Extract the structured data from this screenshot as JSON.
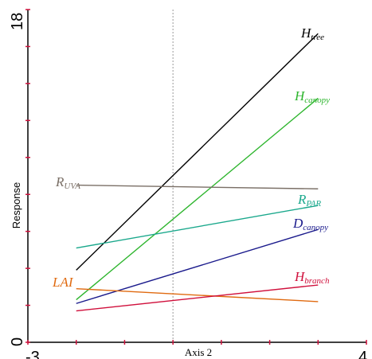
{
  "chart_data": {
    "type": "line",
    "xlabel": "Axis 2",
    "ylabel": "Response",
    "xlim": [
      -3,
      4
    ],
    "ylim": [
      0,
      18
    ],
    "x_tick_labels": [
      "-3",
      "4"
    ],
    "y_tick_labels": [
      "0",
      "18"
    ],
    "reference_line_x": 0,
    "series": [
      {
        "name": "H",
        "subscript": "tree",
        "color": "#000000",
        "x": [
          -2,
          3
        ],
        "y": [
          3.9,
          16.7
        ]
      },
      {
        "name": "H",
        "subscript": "canopy",
        "color": "#2db52d",
        "x": [
          -2,
          3
        ],
        "y": [
          2.3,
          13.2
        ]
      },
      {
        "name": "R",
        "subscript": "UVA",
        "color": "#7a6f66",
        "x": [
          -2,
          3
        ],
        "y": [
          8.5,
          8.3
        ]
      },
      {
        "name": "R",
        "subscript": "PAR",
        "color": "#1aa88c",
        "x": [
          -2,
          3
        ],
        "y": [
          5.1,
          7.4
        ]
      },
      {
        "name": "D",
        "subscript": "canopy",
        "color": "#1a1a8c",
        "x": [
          -2,
          3
        ],
        "y": [
          2.1,
          6.1
        ]
      },
      {
        "name": "LAI",
        "subscript": "",
        "color": "#e06a10",
        "x": [
          -2,
          3
        ],
        "y": [
          2.9,
          2.2
        ]
      },
      {
        "name": "H",
        "subscript": "branch",
        "color": "#d0103c",
        "x": [
          -2,
          3
        ],
        "y": [
          1.7,
          3.1
        ]
      }
    ]
  }
}
